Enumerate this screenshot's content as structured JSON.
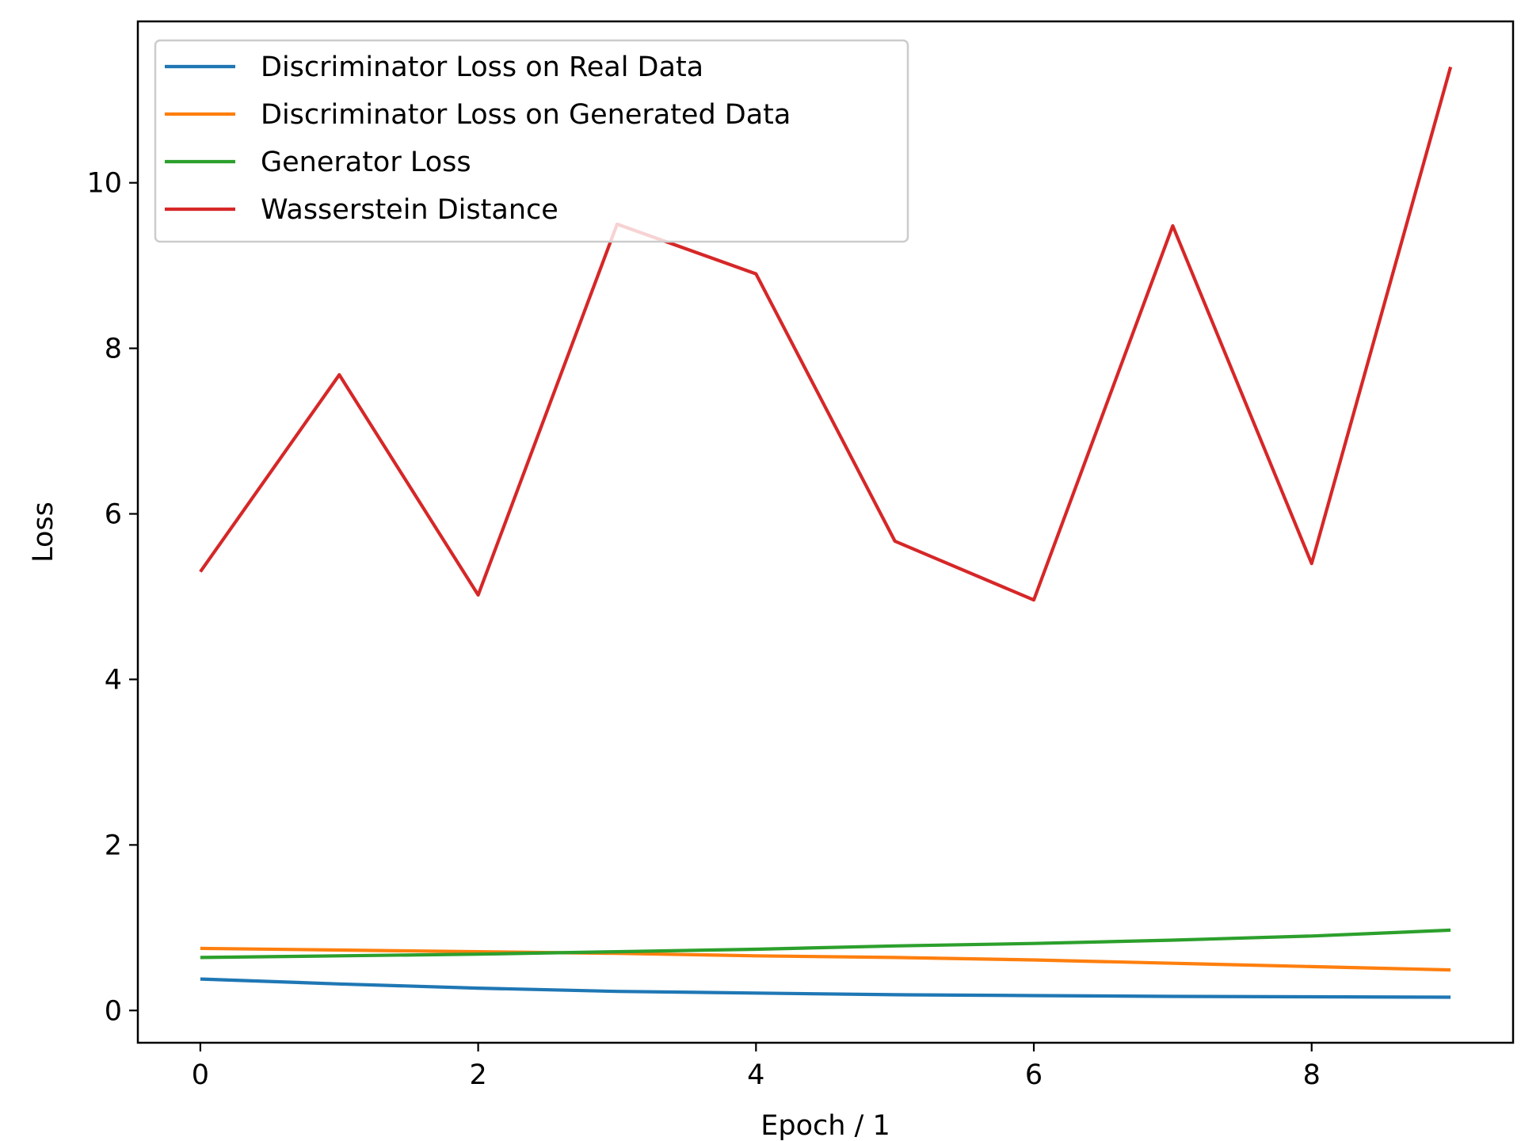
{
  "chart_data": {
    "type": "line",
    "title": "",
    "xlabel": "Epoch / 1",
    "ylabel": "Loss",
    "xlim": [
      -0.45,
      9.45
    ],
    "ylim": [
      -0.39,
      11.95
    ],
    "xticks": [
      0,
      2,
      4,
      6,
      8
    ],
    "xtick_labels": [
      "0",
      "2",
      "4",
      "6",
      "8"
    ],
    "yticks": [
      0,
      2,
      4,
      6,
      8,
      10
    ],
    "ytick_labels": [
      "0",
      "2",
      "4",
      "6",
      "8",
      "10"
    ],
    "grid": false,
    "legend_position": "top-left",
    "x": [
      0,
      1,
      2,
      3,
      4,
      5,
      6,
      7,
      8,
      9
    ],
    "series": [
      {
        "name": "Discriminator Loss on Real Data",
        "color": "#1f77b4",
        "values": [
          0.38,
          0.32,
          0.27,
          0.23,
          0.21,
          0.19,
          0.18,
          0.17,
          0.165,
          0.16
        ]
      },
      {
        "name": "Discriminator Loss on Generated Data",
        "color": "#ff7f0e",
        "values": [
          0.75,
          0.73,
          0.71,
          0.69,
          0.66,
          0.64,
          0.61,
          0.57,
          0.53,
          0.49
        ]
      },
      {
        "name": "Generator Loss",
        "color": "#2ca02c",
        "values": [
          0.64,
          0.66,
          0.68,
          0.71,
          0.74,
          0.78,
          0.81,
          0.85,
          0.9,
          0.97
        ]
      },
      {
        "name": "Wasserstein Distance",
        "color": "#d62728",
        "values": [
          5.3,
          7.68,
          5.02,
          9.5,
          8.9,
          5.67,
          4.96,
          9.48,
          5.4,
          11.4
        ]
      }
    ]
  }
}
